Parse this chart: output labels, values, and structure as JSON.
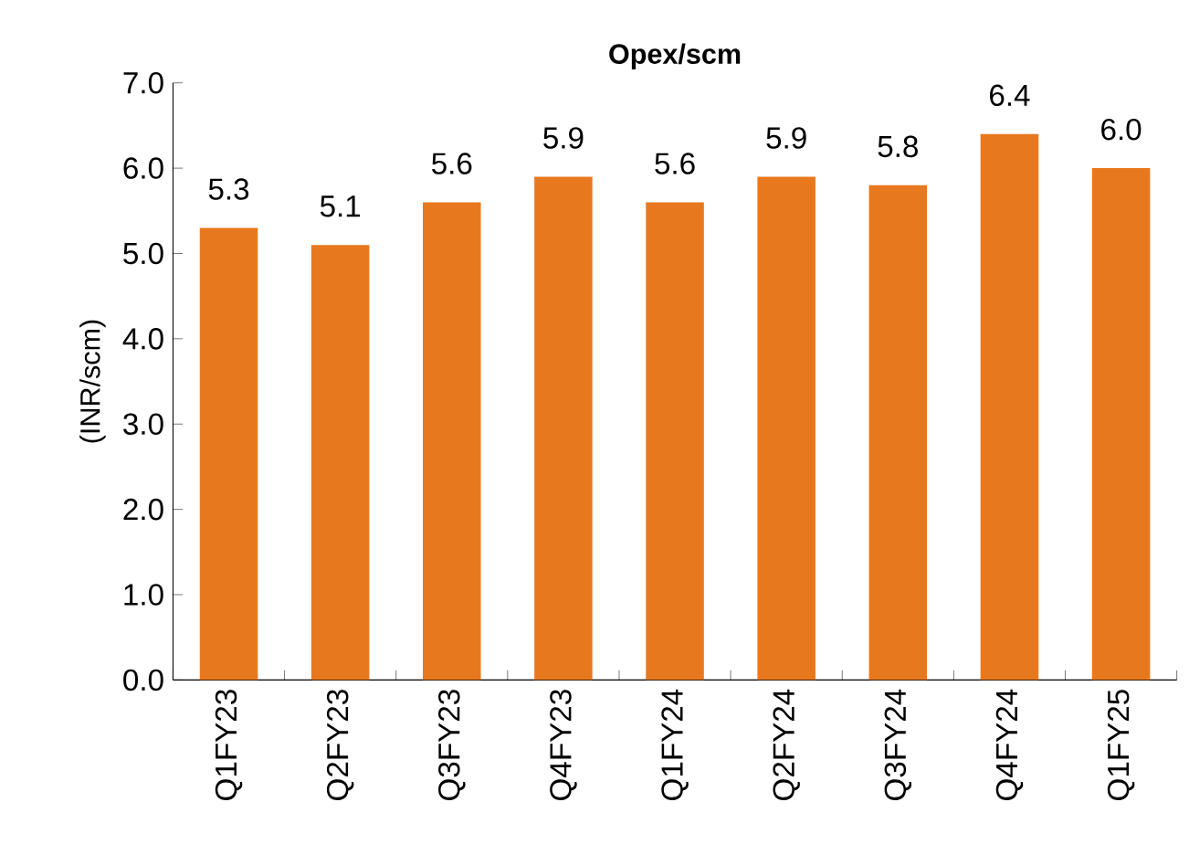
{
  "chart_data": {
    "type": "bar",
    "title": "Opex/scm",
    "ylabel": "(INR/scm)",
    "categories": [
      "Q1FY23",
      "Q2FY23",
      "Q3FY23",
      "Q4FY23",
      "Q1FY24",
      "Q2FY24",
      "Q3FY24",
      "Q4FY24",
      "Q1FY25"
    ],
    "values": [
      5.3,
      5.1,
      5.6,
      5.9,
      5.6,
      5.9,
      5.8,
      6.4,
      6.0
    ],
    "value_labels": [
      "5.3",
      "5.1",
      "5.6",
      "5.9",
      "5.6",
      "5.9",
      "5.8",
      "6.4",
      "6.0"
    ],
    "color": "#e8781e",
    "grid": false,
    "ylim": [
      0,
      7
    ],
    "yticks": [
      {
        "value": 0,
        "label": "0.0"
      },
      {
        "value": 1,
        "label": "1.0"
      },
      {
        "value": 2,
        "label": "2.0"
      },
      {
        "value": 3,
        "label": "3.0"
      },
      {
        "value": 4,
        "label": "4.0"
      },
      {
        "value": 5,
        "label": "5.0"
      },
      {
        "value": 6,
        "label": "6.0"
      },
      {
        "value": 7,
        "label": "7.0"
      }
    ]
  }
}
